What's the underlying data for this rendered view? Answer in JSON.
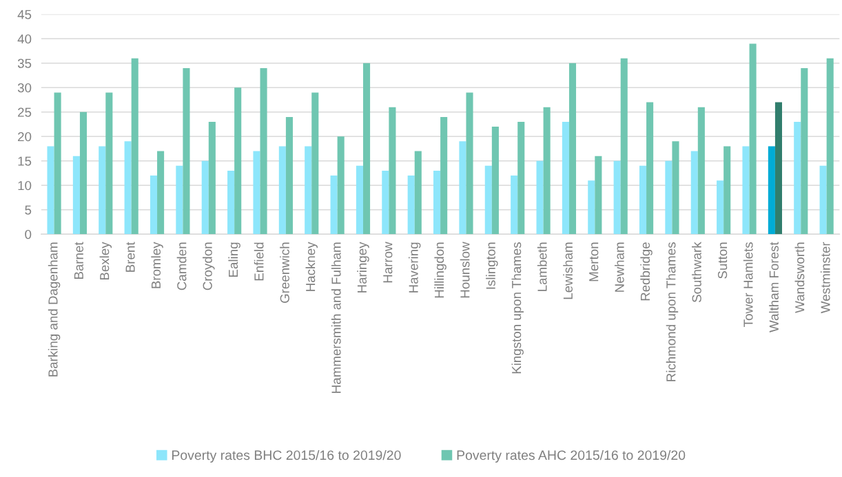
{
  "chart_data": {
    "type": "bar",
    "categories": [
      "Barking and Dagenham",
      "Barnet",
      "Bexley",
      "Brent",
      "Bromley",
      "Camden",
      "Croydon",
      "Ealing",
      "Enfield",
      "Greenwich",
      "Hackney",
      "Hammersmith and Fulham",
      "Haringey",
      "Harrow",
      "Havering",
      "Hillingdon",
      "Hounslow",
      "Islington",
      "Kingston upon Thames",
      "Lambeth",
      "Lewisham",
      "Merton",
      "Newham",
      "Redbridge",
      "Richmond upon Thames",
      "Southwark",
      "Sutton",
      "Tower Hamlets",
      "Waltham Forest",
      "Wandsworth",
      "Westminster"
    ],
    "series": [
      {
        "name": "Poverty rates BHC 2015/16 to 2019/20",
        "color": "#8de6fb",
        "colors": [
          "#8de6fb",
          "#8de6fb",
          "#8de6fb",
          "#8de6fb",
          "#8de6fb",
          "#8de6fb",
          "#8de6fb",
          "#8de6fb",
          "#8de6fb",
          "#8de6fb",
          "#8de6fb",
          "#8de6fb",
          "#8de6fb",
          "#8de6fb",
          "#8de6fb",
          "#8de6fb",
          "#8de6fb",
          "#8de6fb",
          "#8de6fb",
          "#8de6fb",
          "#8de6fb",
          "#8de6fb",
          "#8de6fb",
          "#8de6fb",
          "#8de6fb",
          "#8de6fb",
          "#8de6fb",
          "#8de6fb",
          "#00acd6",
          "#8de6fb",
          "#8de6fb"
        ],
        "values": [
          18,
          16,
          18,
          19,
          12,
          14,
          15,
          13,
          17,
          18,
          18,
          12,
          14,
          13,
          12,
          13,
          19,
          14,
          12,
          15,
          23,
          11,
          15,
          14,
          15,
          17,
          11,
          18,
          18,
          23,
          14
        ]
      },
      {
        "name": "Poverty rates AHC 2015/16 to 2019/20",
        "color": "#6fc6b1",
        "colors": [
          "#6fc6b1",
          "#6fc6b1",
          "#6fc6b1",
          "#6fc6b1",
          "#6fc6b1",
          "#6fc6b1",
          "#6fc6b1",
          "#6fc6b1",
          "#6fc6b1",
          "#6fc6b1",
          "#6fc6b1",
          "#6fc6b1",
          "#6fc6b1",
          "#6fc6b1",
          "#6fc6b1",
          "#6fc6b1",
          "#6fc6b1",
          "#6fc6b1",
          "#6fc6b1",
          "#6fc6b1",
          "#6fc6b1",
          "#6fc6b1",
          "#6fc6b1",
          "#6fc6b1",
          "#6fc6b1",
          "#6fc6b1",
          "#6fc6b1",
          "#6fc6b1",
          "#317e6d",
          "#6fc6b1",
          "#6fc6b1"
        ],
        "values": [
          29,
          25,
          29,
          36,
          17,
          34,
          23,
          30,
          34,
          24,
          29,
          20,
          35,
          26,
          17,
          24,
          29,
          22,
          23,
          26,
          35,
          16,
          36,
          27,
          19,
          26,
          18,
          39,
          27,
          34,
          36
        ]
      }
    ],
    "ylim": [
      0,
      45
    ],
    "yticks": [
      0,
      5,
      10,
      15,
      20,
      25,
      30,
      35,
      40,
      45
    ],
    "grid": "y",
    "legend": "bottom"
  }
}
